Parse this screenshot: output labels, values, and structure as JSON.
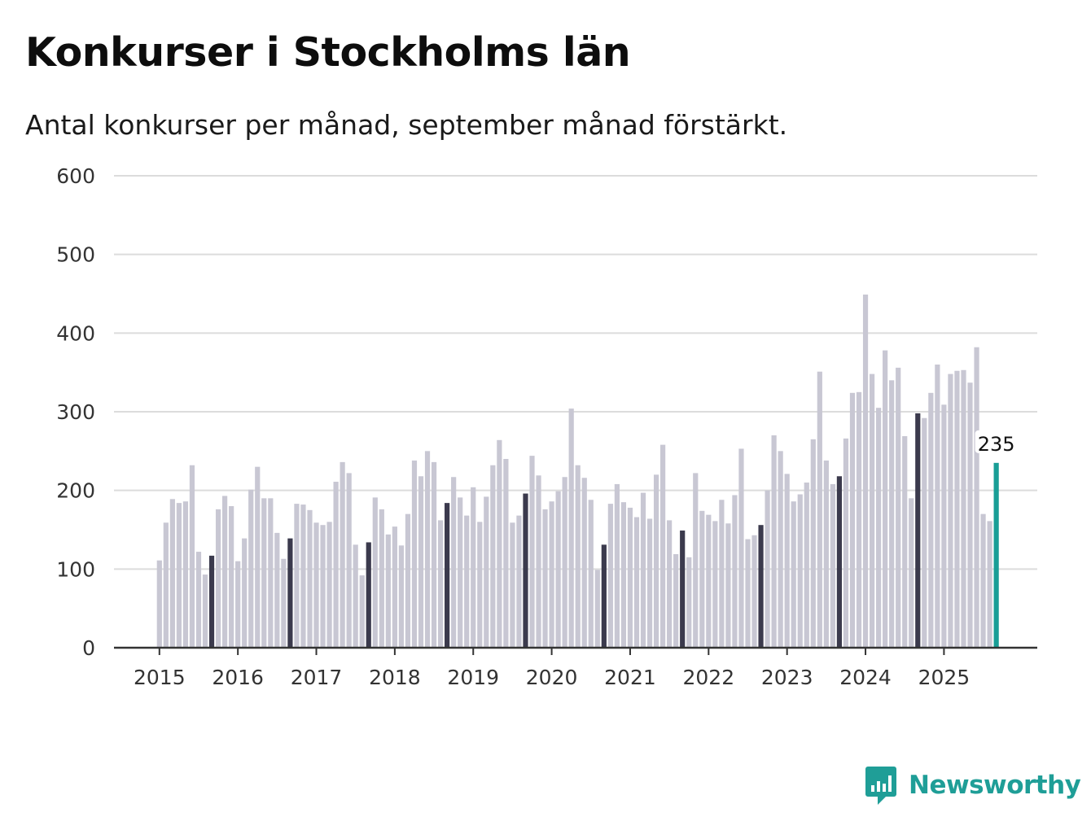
{
  "chart_data": {
    "type": "bar",
    "title": "Konkurser i Stockholms län",
    "subtitle": "Antal konkurser per månad, september månad förstärkt.",
    "xlabel": "",
    "ylabel": "",
    "ylim": [
      0,
      600
    ],
    "yticks": [
      0,
      100,
      200,
      300,
      400,
      500,
      600
    ],
    "year_labels": [
      "2015",
      "2016",
      "2017",
      "2018",
      "2019",
      "2020",
      "2021",
      "2022",
      "2023",
      "2024",
      "2025"
    ],
    "start": "2015-01",
    "highlight_month": 9,
    "values": [
      111,
      159,
      189,
      184,
      186,
      232,
      122,
      93,
      117,
      176,
      193,
      180,
      110,
      139,
      201,
      230,
      190,
      190,
      146,
      113,
      139,
      183,
      182,
      175,
      159,
      156,
      160,
      211,
      236,
      222,
      131,
      92,
      134,
      191,
      176,
      144,
      154,
      130,
      170,
      238,
      218,
      250,
      236,
      162,
      184,
      217,
      191,
      168,
      204,
      160,
      192,
      232,
      264,
      240,
      159,
      168,
      196,
      244,
      219,
      176,
      186,
      199,
      217,
      304,
      232,
      216,
      188,
      99,
      131,
      183,
      208,
      185,
      178,
      166,
      197,
      164,
      220,
      258,
      162,
      119,
      149,
      115,
      222,
      174,
      169,
      161,
      188,
      158,
      194,
      253,
      138,
      143,
      156,
      200,
      270,
      250,
      221,
      186,
      195,
      210,
      265,
      351,
      238,
      208,
      218,
      266,
      324,
      325,
      449,
      348,
      305,
      378,
      340,
      356,
      269,
      190,
      298,
      292,
      324,
      360,
      309,
      348,
      352,
      353,
      337,
      382,
      170,
      161,
      235
    ],
    "last_value_label": "235",
    "colors": {
      "regular": "#c8c7d3",
      "september": "#3b3a4d",
      "latest": "#199e96",
      "grid": "#dcdcdc",
      "axis": "#333333"
    }
  },
  "brand": {
    "name": "Newsworthy",
    "icon": "newsworthy-logo-icon",
    "color": "#1f9e97"
  }
}
